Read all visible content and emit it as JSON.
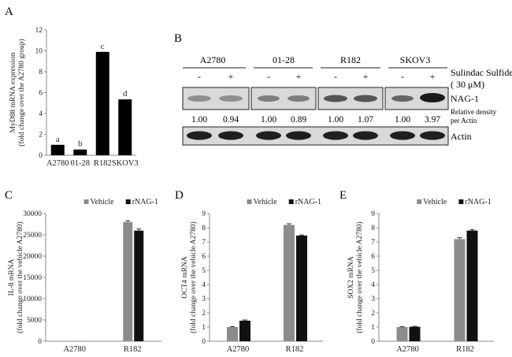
{
  "chart_data": [
    {
      "panel": "A",
      "type": "bar",
      "ylabel_lines": [
        "MyD88 mRNA expression",
        "(fold change over the A2780 group)"
      ],
      "categories": [
        "A2780",
        "01-28",
        "R182",
        "SKOV3"
      ],
      "values": [
        1.0,
        0.55,
        9.9,
        5.35
      ],
      "letters": [
        "a",
        "b",
        "c",
        "d"
      ],
      "ylim": [
        0,
        12
      ],
      "yticks": [
        "0",
        "2",
        "4",
        "6",
        "8",
        "10",
        "12"
      ],
      "colors": [
        "#000000"
      ]
    },
    {
      "panel": "C",
      "type": "bar",
      "ylabel_lines": [
        "IL-8 mRNA",
        "(fold change over the vehicle A2780)"
      ],
      "categories": [
        "A2780",
        "R182"
      ],
      "series": [
        {
          "name": "Vehicle",
          "values": [
            1,
            28000
          ],
          "errors": [
            0,
            300
          ]
        },
        {
          "name": "rNAG-1",
          "values": [
            1,
            26000
          ],
          "errors": [
            0,
            400
          ]
        }
      ],
      "ylim": [
        0,
        30000
      ],
      "yticks": [
        "0",
        "5000",
        "10000",
        "15000",
        "20000",
        "25000",
        "30000"
      ],
      "legend": "top-right",
      "colors": [
        "#8c8c8c",
        "#111111"
      ]
    },
    {
      "panel": "D",
      "type": "bar",
      "ylabel_lines": [
        "OCT4 mRNA",
        "(fold change over the vehicle A2780)"
      ],
      "categories": [
        "A2780",
        "R182"
      ],
      "series": [
        {
          "name": "Vehicle",
          "values": [
            1.0,
            8.2
          ],
          "errors": [
            0.03,
            0.08
          ]
        },
        {
          "name": "rNAG-1",
          "values": [
            1.45,
            7.45
          ],
          "errors": [
            0.05,
            0.04
          ]
        }
      ],
      "ylim": [
        0,
        9
      ],
      "yticks": [
        "0",
        "1",
        "2",
        "3",
        "4",
        "5",
        "6",
        "7",
        "8",
        "9"
      ],
      "legend": "top-right",
      "colors": [
        "#8c8c8c",
        "#111111"
      ]
    },
    {
      "panel": "E",
      "type": "bar",
      "ylabel_lines": [
        "SOX2 mRNA",
        "(fold change over the vehicle A2780)"
      ],
      "categories": [
        "A2780",
        "R182"
      ],
      "series": [
        {
          "name": "Vehicle",
          "values": [
            1.0,
            7.2
          ],
          "errors": [
            0.03,
            0.1
          ]
        },
        {
          "name": "rNAG-1",
          "values": [
            1.02,
            7.8
          ],
          "errors": [
            0.03,
            0.06
          ]
        }
      ],
      "ylim": [
        0,
        9
      ],
      "yticks": [
        "0",
        "1",
        "2",
        "3",
        "4",
        "5",
        "6",
        "7",
        "8",
        "9"
      ],
      "legend": "top-right",
      "colors": [
        "#8c8c8c",
        "#111111"
      ]
    }
  ],
  "panel_labels": {
    "a": "A",
    "b": "B",
    "c": "C",
    "d": "D",
    "e": "E"
  },
  "blot": {
    "cell_lines": [
      "A2780",
      "01-28",
      "R182",
      "SKOV3"
    ],
    "treatment_title_line1": "Sulindac Sulfide",
    "treatment_title_line2": "( 30 μM)",
    "minus_sign": "-",
    "plus_sign": "+",
    "nag_label": "NAG-1",
    "density_caption_line1": "Relative density",
    "density_caption_line2": "per Actin",
    "densities": [
      "1.00",
      "0.94",
      "1.00",
      "0.89",
      "1.00",
      "1.07",
      "1.00",
      "3.97"
    ],
    "actin_label": "Actin"
  }
}
